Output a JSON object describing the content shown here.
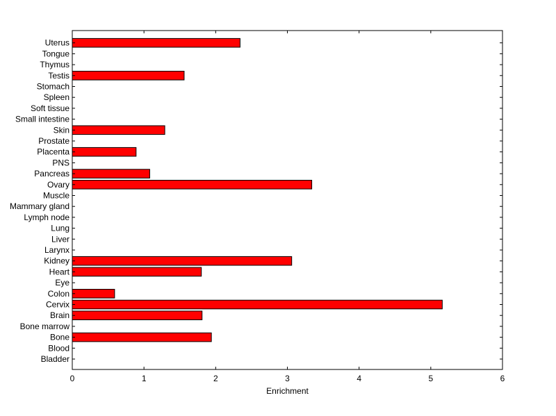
{
  "chart_data": {
    "type": "bar",
    "orientation": "horizontal",
    "categories": [
      "Bladder",
      "Blood",
      "Bone",
      "Bone marrow",
      "Brain",
      "Cervix",
      "Colon",
      "Eye",
      "Heart",
      "Kidney",
      "Larynx",
      "Liver",
      "Lung",
      "Lymph node",
      "Mammary gland",
      "Muscle",
      "Ovary",
      "Pancreas",
      "PNS",
      "Placenta",
      "Prostate",
      "Skin",
      "Small intestine",
      "Soft tissue",
      "Spleen",
      "Stomach",
      "Testis",
      "Thymus",
      "Tongue",
      "Uterus"
    ],
    "values": [
      0,
      0,
      1.94,
      0,
      1.81,
      5.16,
      0.59,
      0,
      1.8,
      3.06,
      0,
      0,
      0,
      0,
      0,
      0,
      3.34,
      1.08,
      0,
      0.89,
      0,
      1.29,
      0,
      0,
      0,
      0,
      1.56,
      0,
      0,
      2.34
    ],
    "xlabel": "Enrichment",
    "ylabel": "",
    "title": "",
    "xlim": [
      0,
      6
    ],
    "xticks": [
      "0",
      "1",
      "2",
      "3",
      "4",
      "5",
      "6"
    ],
    "bar_color": "#ff0000",
    "grid": false
  }
}
